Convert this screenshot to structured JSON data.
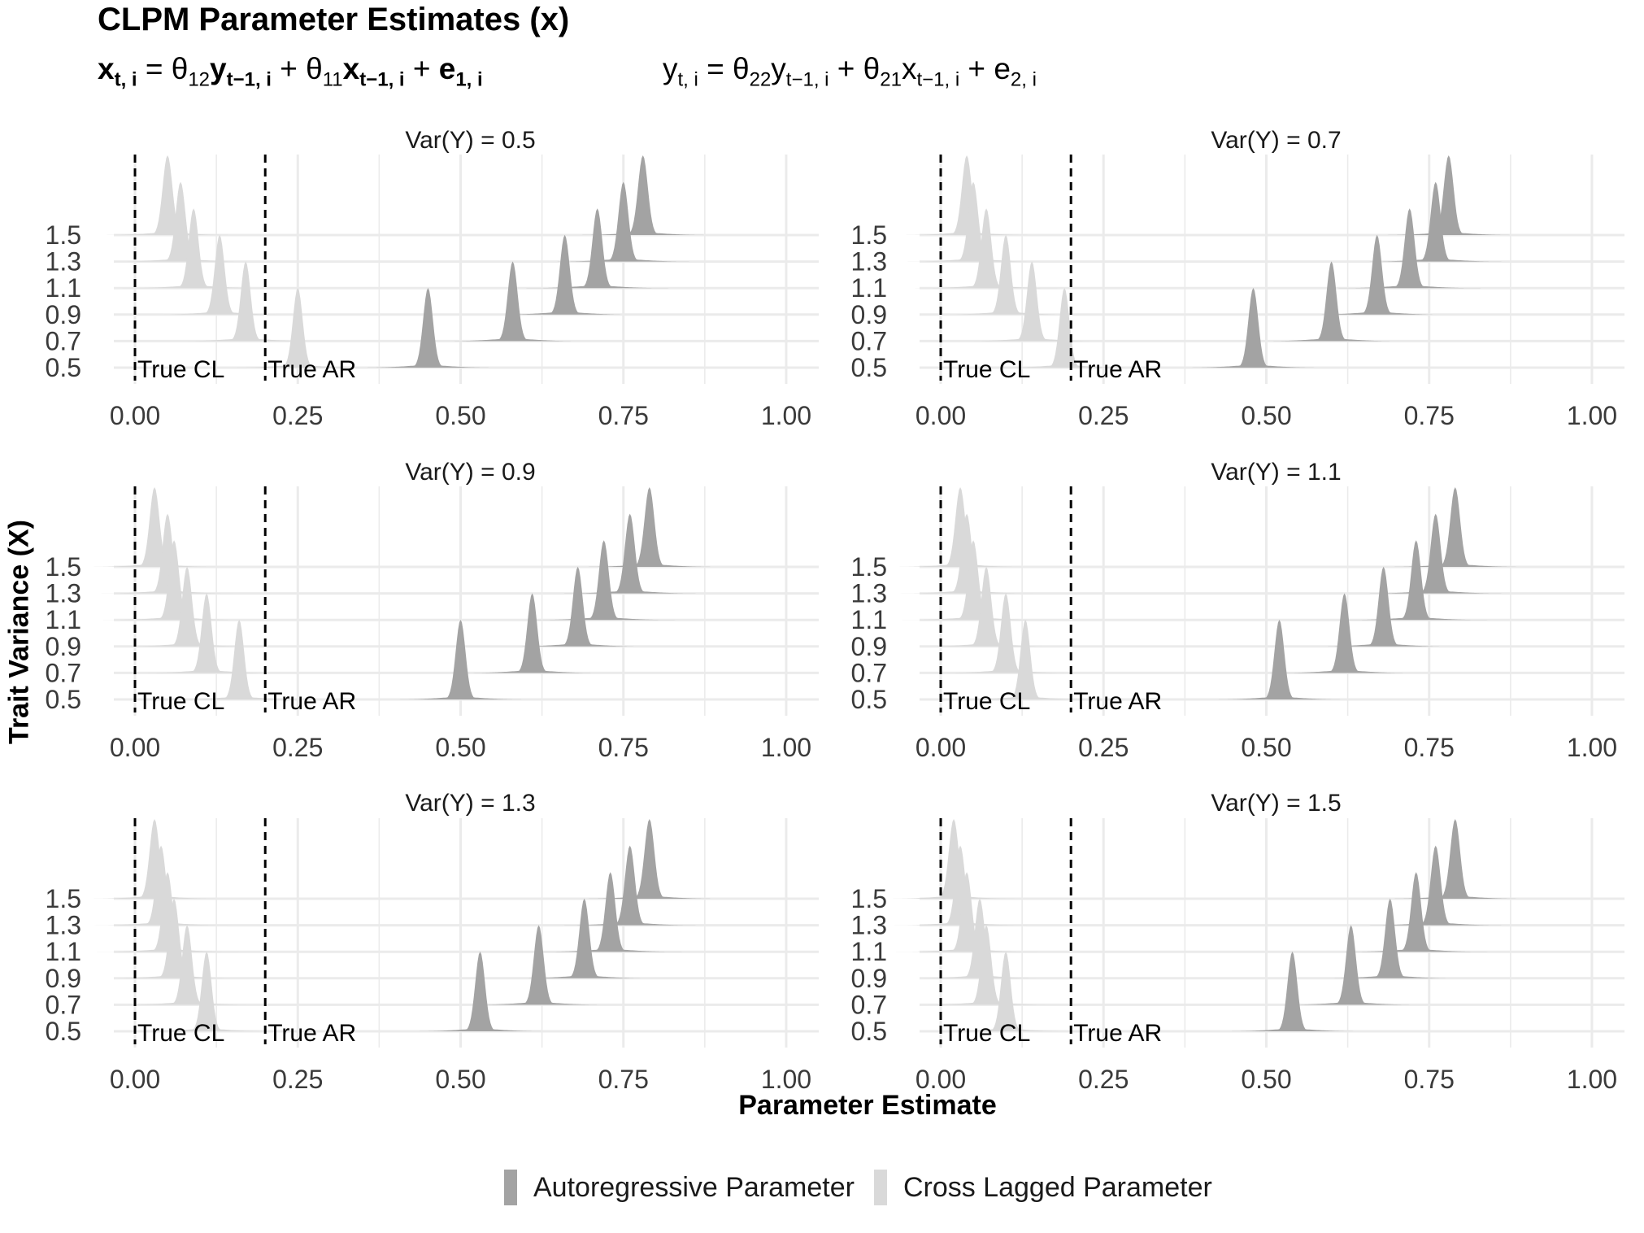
{
  "title": "CLPM Parameter Estimates (x)",
  "equations": {
    "x": {
      "lhs": "x",
      "lhs_sub": "t, i",
      "theta1": "θ",
      "theta1_sub": "12",
      "v1": "y",
      "v1_sub": "t−1, i",
      "theta2": "θ",
      "theta2_sub": "11",
      "v2": "x",
      "v2_sub": "t−1, i",
      "err": "e",
      "err_sub": "1, i"
    },
    "y": {
      "lhs": "y",
      "lhs_sub": "t, i",
      "theta1": "θ",
      "theta1_sub": "22",
      "v1": "y",
      "v1_sub": "t−1, i",
      "theta2": "θ",
      "theta2_sub": "21",
      "v2": "x",
      "v2_sub": "t−1, i",
      "err": "e",
      "err_sub": "2, i"
    }
  },
  "chart_data": {
    "type": "ridgeline",
    "xlabel": "Parameter Estimate",
    "ylabel": "Trait Variance (X)",
    "xlim": [
      -0.02,
      1.05
    ],
    "x_ticks": [
      "0.00",
      "0.25",
      "0.50",
      "0.75",
      "1.00"
    ],
    "y_categories": [
      "0.5",
      "0.7",
      "0.9",
      "1.1",
      "1.3",
      "1.5"
    ],
    "reference_lines": [
      {
        "label": "True CL",
        "x": 0.0
      },
      {
        "label": "True AR",
        "x": 0.2
      }
    ],
    "colors": {
      "Autoregressive Parameter": "#a3a3a3",
      "Cross Lagged Parameter": "#d9d9d9",
      "grid": "#ebebeb"
    },
    "legend": [
      "Autoregressive Parameter",
      "Cross Lagged Parameter"
    ],
    "legend_position": "bottom",
    "panels": [
      {
        "label": "Var(Y) =  0.5",
        "autoregressive": [
          0.45,
          0.58,
          0.66,
          0.71,
          0.75,
          0.78
        ],
        "cross_lagged": [
          0.25,
          0.17,
          0.13,
          0.09,
          0.07,
          0.05
        ]
      },
      {
        "label": "Var(Y) =  0.7",
        "autoregressive": [
          0.48,
          0.6,
          0.67,
          0.72,
          0.76,
          0.78
        ],
        "cross_lagged": [
          0.19,
          0.14,
          0.1,
          0.07,
          0.05,
          0.04
        ]
      },
      {
        "label": "Var(Y) =  0.9",
        "autoregressive": [
          0.5,
          0.61,
          0.68,
          0.72,
          0.76,
          0.79
        ],
        "cross_lagged": [
          0.16,
          0.11,
          0.08,
          0.06,
          0.05,
          0.03
        ]
      },
      {
        "label": "Var(Y) =  1.1",
        "autoregressive": [
          0.52,
          0.62,
          0.68,
          0.73,
          0.76,
          0.79
        ],
        "cross_lagged": [
          0.13,
          0.1,
          0.07,
          0.05,
          0.04,
          0.03
        ]
      },
      {
        "label": "Var(Y) =  1.3",
        "autoregressive": [
          0.53,
          0.62,
          0.69,
          0.73,
          0.76,
          0.79
        ],
        "cross_lagged": [
          0.11,
          0.08,
          0.06,
          0.05,
          0.04,
          0.03
        ]
      },
      {
        "label": "Var(Y) =  1.5",
        "autoregressive": [
          0.54,
          0.63,
          0.69,
          0.73,
          0.76,
          0.79
        ],
        "cross_lagged": [
          0.1,
          0.07,
          0.06,
          0.04,
          0.03,
          0.02
        ]
      }
    ]
  }
}
